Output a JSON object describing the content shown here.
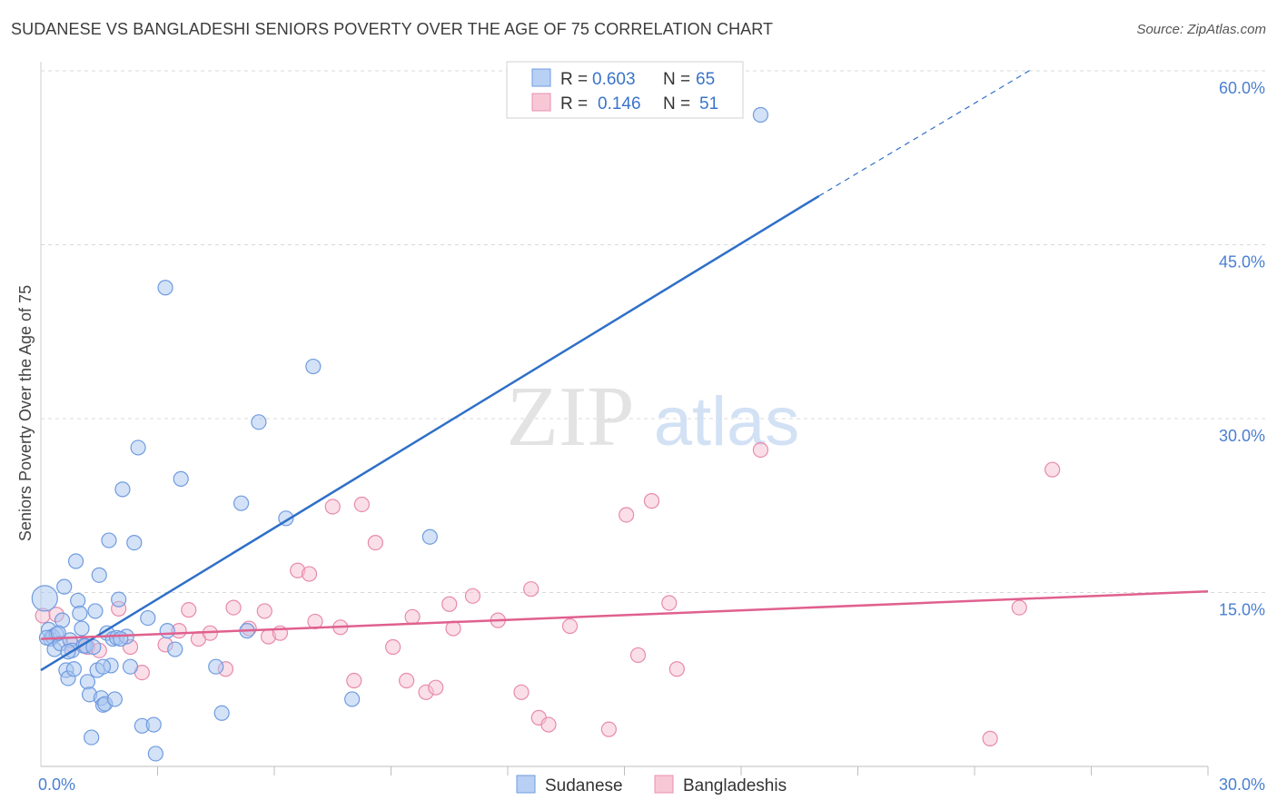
{
  "title": "SUDANESE VS BANGLADESHI SENIORS POVERTY OVER THE AGE OF 75 CORRELATION CHART",
  "source": "Source: ZipAtlas.com",
  "watermark": {
    "zip": "ZIP",
    "atlas": "atlas"
  },
  "legend": {
    "r_label": "R =",
    "n_label": "N =",
    "items": [
      {
        "r": "0.603",
        "n": "65",
        "fill": "#b8d0f4",
        "stroke": "#6f9be0"
      },
      {
        "r": "0.146",
        "n": "51",
        "fill": "#f8c7d6",
        "stroke": "#e98fb0"
      }
    ]
  },
  "bottom_legend": [
    "Sudanese",
    "Bangladeshis"
  ],
  "colors": {
    "blue_fill": "#a9c6ef",
    "blue_stroke": "#6f9be0",
    "blue_line": "#2f70c8",
    "pink_fill": "#f6bfd1",
    "pink_stroke": "#e88aab",
    "pink_line": "#e0608e",
    "axis_text": "#4a7fd0",
    "grid": "#d8d8d8"
  },
  "chart_data": {
    "type": "scatter",
    "title": "SUDANESE VS BANGLADESHI SENIORS POVERTY OVER THE AGE OF 75 CORRELATION CHART",
    "xlabel": "",
    "ylabel": "Seniors Poverty Over the Age of 75",
    "xlim": [
      0,
      30
    ],
    "ylim": [
      0,
      60
    ],
    "x_ticks": [
      0,
      30
    ],
    "x_tick_labels": [
      "0.0%",
      "30.0%"
    ],
    "y_ticks": [
      15,
      30,
      45,
      60
    ],
    "y_tick_labels": [
      "15.0%",
      "30.0%",
      "45.0%",
      "60.0%"
    ],
    "grid": true,
    "legend_position": "top-center",
    "series": [
      {
        "name": "Sudanese",
        "r": 0.603,
        "n": 65,
        "trend": {
          "x0": 0,
          "y0": 8.3,
          "x1": 20,
          "y1": 49.2,
          "dashed_to_x": 25.5,
          "dashed_to_y": 60.2
        },
        "points": [
          [
            0.1,
            14.5
          ],
          [
            0.2,
            11.8
          ],
          [
            0.25,
            11.0
          ],
          [
            0.3,
            11.2
          ],
          [
            0.35,
            10.1
          ],
          [
            0.4,
            11.4
          ],
          [
            0.5,
            10.6
          ],
          [
            0.55,
            12.6
          ],
          [
            0.6,
            15.5
          ],
          [
            0.65,
            8.3
          ],
          [
            0.7,
            7.6
          ],
          [
            0.75,
            10.9
          ],
          [
            0.8,
            10.0
          ],
          [
            0.85,
            8.4
          ],
          [
            0.9,
            17.7
          ],
          [
            0.95,
            14.3
          ],
          [
            1.0,
            13.2
          ],
          [
            1.05,
            11.9
          ],
          [
            1.1,
            10.4
          ],
          [
            1.15,
            10.4
          ],
          [
            1.2,
            7.3
          ],
          [
            1.25,
            6.2
          ],
          [
            1.3,
            2.5
          ],
          [
            1.4,
            13.4
          ],
          [
            1.45,
            8.3
          ],
          [
            1.5,
            16.5
          ],
          [
            1.55,
            5.9
          ],
          [
            1.6,
            5.3
          ],
          [
            1.65,
            5.4
          ],
          [
            1.7,
            11.5
          ],
          [
            1.75,
            19.5
          ],
          [
            1.8,
            8.7
          ],
          [
            1.85,
            11.0
          ],
          [
            1.9,
            5.8
          ],
          [
            1.95,
            11.1
          ],
          [
            2.0,
            14.4
          ],
          [
            2.1,
            23.9
          ],
          [
            2.2,
            11.2
          ],
          [
            2.3,
            8.6
          ],
          [
            2.4,
            19.3
          ],
          [
            2.5,
            27.5
          ],
          [
            2.6,
            3.5
          ],
          [
            2.75,
            12.8
          ],
          [
            2.9,
            3.6
          ],
          [
            2.95,
            1.1
          ],
          [
            3.2,
            41.3
          ],
          [
            3.25,
            11.7
          ],
          [
            3.45,
            10.1
          ],
          [
            3.6,
            24.8
          ],
          [
            4.5,
            8.6
          ],
          [
            4.65,
            4.6
          ],
          [
            5.15,
            22.7
          ],
          [
            5.3,
            11.7
          ],
          [
            5.6,
            29.7
          ],
          [
            6.3,
            21.4
          ],
          [
            7.0,
            34.5
          ],
          [
            8.0,
            5.8
          ],
          [
            10.0,
            19.8
          ],
          [
            18.5,
            56.2
          ],
          [
            0.15,
            11.1
          ],
          [
            0.45,
            11.5
          ],
          [
            1.35,
            10.3
          ],
          [
            1.6,
            8.6
          ],
          [
            2.05,
            11.0
          ],
          [
            0.7,
            9.9
          ]
        ]
      },
      {
        "name": "Bangladeshis",
        "r": 0.146,
        "n": 51,
        "trend": {
          "x0": 0,
          "y0": 11.0,
          "x1": 30,
          "y1": 15.1
        },
        "points": [
          [
            0.05,
            13.0
          ],
          [
            0.4,
            13.1
          ],
          [
            0.8,
            10.5
          ],
          [
            1.2,
            10.3
          ],
          [
            1.5,
            10.0
          ],
          [
            2.0,
            13.6
          ],
          [
            2.3,
            10.3
          ],
          [
            2.6,
            8.1
          ],
          [
            3.2,
            10.5
          ],
          [
            3.55,
            11.7
          ],
          [
            3.8,
            13.5
          ],
          [
            4.05,
            11.0
          ],
          [
            4.35,
            11.5
          ],
          [
            4.75,
            8.4
          ],
          [
            4.95,
            13.7
          ],
          [
            5.35,
            11.9
          ],
          [
            5.75,
            13.4
          ],
          [
            5.85,
            11.2
          ],
          [
            6.15,
            11.5
          ],
          [
            6.6,
            16.9
          ],
          [
            6.9,
            16.6
          ],
          [
            7.05,
            12.5
          ],
          [
            7.5,
            22.4
          ],
          [
            7.7,
            12.0
          ],
          [
            8.05,
            7.4
          ],
          [
            8.25,
            22.6
          ],
          [
            8.6,
            19.3
          ],
          [
            9.05,
            10.3
          ],
          [
            9.4,
            7.4
          ],
          [
            9.55,
            12.9
          ],
          [
            9.9,
            6.4
          ],
          [
            10.15,
            6.8
          ],
          [
            10.5,
            14.0
          ],
          [
            10.6,
            11.9
          ],
          [
            11.1,
            14.7
          ],
          [
            11.75,
            12.6
          ],
          [
            12.35,
            6.4
          ],
          [
            12.6,
            15.3
          ],
          [
            12.8,
            4.2
          ],
          [
            13.05,
            3.6
          ],
          [
            13.6,
            12.1
          ],
          [
            14.6,
            3.2
          ],
          [
            15.05,
            21.7
          ],
          [
            15.35,
            9.6
          ],
          [
            15.7,
            22.9
          ],
          [
            16.15,
            14.1
          ],
          [
            16.35,
            8.4
          ],
          [
            18.5,
            27.3
          ],
          [
            24.4,
            2.4
          ],
          [
            25.15,
            13.7
          ],
          [
            26.0,
            25.6
          ]
        ]
      }
    ]
  }
}
